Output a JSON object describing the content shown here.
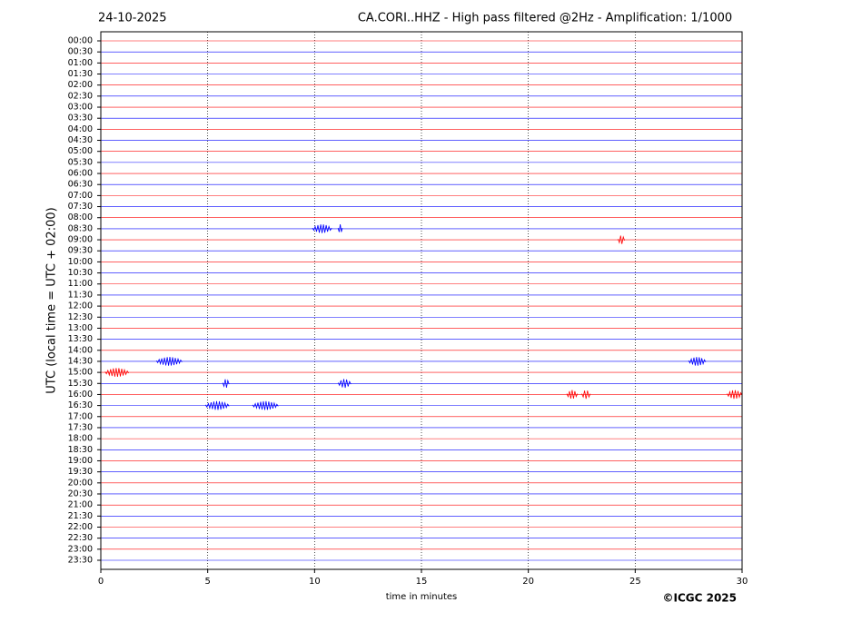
{
  "chart_data": {
    "type": "helicorder",
    "date": "24-10-2025",
    "title": "CA.CORI..HHZ - High pass filtered @2Hz - Amplification: 1/1000",
    "ylabel": "UTC (local time = UTC + 02:00)",
    "xlabel": "time in minutes",
    "credit": "©ICGC 2025",
    "categories": [
      "00:00",
      "00:30",
      "01:00",
      "01:30",
      "02:00",
      "02:30",
      "03:00",
      "03:30",
      "04:00",
      "04:30",
      "05:00",
      "05:30",
      "06:00",
      "06:30",
      "07:00",
      "07:30",
      "08:00",
      "08:30",
      "09:00",
      "09:30",
      "10:00",
      "10:30",
      "11:00",
      "11:30",
      "12:00",
      "12:30",
      "13:00",
      "13:30",
      "14:00",
      "14:30",
      "15:00",
      "15:30",
      "16:00",
      "16:30",
      "17:00",
      "17:30",
      "18:00",
      "18:30",
      "19:00",
      "19:30",
      "20:00",
      "20:30",
      "21:00",
      "21:30",
      "22:00",
      "22:30",
      "23:00",
      "23:30"
    ],
    "colors": [
      "#ff0000",
      "#0000ff"
    ],
    "xlim": [
      0,
      30
    ],
    "xticks": [
      0,
      5,
      10,
      15,
      20,
      25,
      30
    ],
    "grid": true,
    "events": [
      {
        "row": 17,
        "start": 9.9,
        "end": 10.8
      },
      {
        "row": 17,
        "start": 11.1,
        "end": 11.3
      },
      {
        "row": 18,
        "start": 24.2,
        "end": 24.5
      },
      {
        "row": 29,
        "start": 2.6,
        "end": 3.8
      },
      {
        "row": 29,
        "start": 27.5,
        "end": 28.3
      },
      {
        "row": 30,
        "start": 0.2,
        "end": 1.3
      },
      {
        "row": 31,
        "start": 5.7,
        "end": 6.0
      },
      {
        "row": 31,
        "start": 11.1,
        "end": 11.7
      },
      {
        "row": 32,
        "start": 21.8,
        "end": 22.3
      },
      {
        "row": 32,
        "start": 22.5,
        "end": 22.9
      },
      {
        "row": 32,
        "start": 29.3,
        "end": 30
      },
      {
        "row": 33,
        "start": 4.9,
        "end": 6.0
      },
      {
        "row": 33,
        "start": 7.1,
        "end": 8.3
      }
    ]
  }
}
